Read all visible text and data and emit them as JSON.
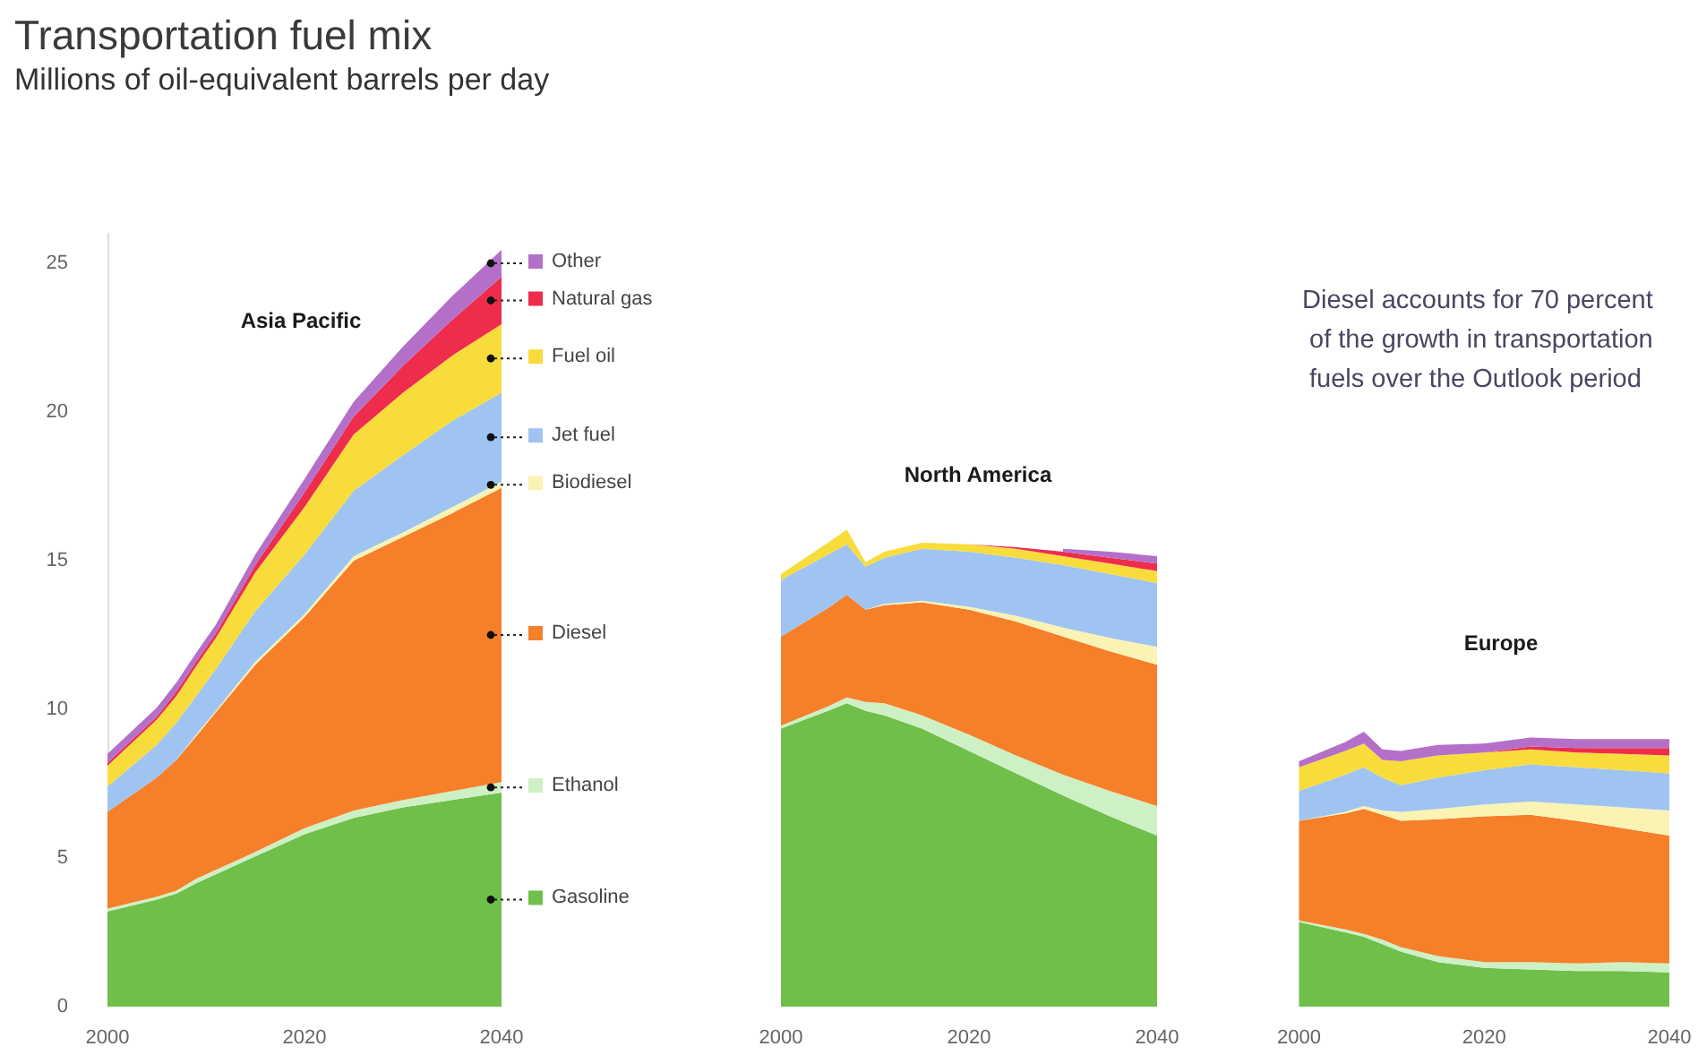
{
  "chart_data": [
    {
      "type": "area",
      "title": "Transportation fuel mix",
      "subtitle": "Millions of oil-equivalent barrels per day",
      "annotations": [
        "Asia Pacific"
      ],
      "stacked": true,
      "legend": "right",
      "x": [
        2000,
        2005,
        2007,
        2009,
        2011,
        2015,
        2020,
        2025,
        2030,
        2035,
        2040
      ],
      "xlim": [
        2000,
        2040
      ],
      "xticks": [
        2000,
        2020,
        2040
      ],
      "ylim": [
        0,
        26
      ],
      "yticks": [
        0,
        5,
        10,
        15,
        20,
        25
      ],
      "series": [
        {
          "name": "Gasoline",
          "color": "#6fbf4a",
          "values": [
            3.2,
            3.6,
            3.8,
            4.15,
            4.45,
            5.05,
            5.8,
            6.35,
            6.7,
            6.95,
            7.2
          ]
        },
        {
          "name": "Ethanol",
          "color": "#cdf0c4",
          "values": [
            0.1,
            0.1,
            0.1,
            0.15,
            0.15,
            0.15,
            0.2,
            0.25,
            0.25,
            0.3,
            0.35
          ]
        },
        {
          "name": "Diesel",
          "color": "#f67f2a",
          "values": [
            3.25,
            4.0,
            4.4,
            4.8,
            5.3,
            6.3,
            7.1,
            8.4,
            8.85,
            9.35,
            9.9
          ]
        },
        {
          "name": "Biodiesel",
          "color": "#fbf3b4",
          "values": [
            0,
            0,
            0,
            0.05,
            0.05,
            0.1,
            0.1,
            0.15,
            0.15,
            0.2,
            0.2
          ]
        },
        {
          "name": "Jet fuel",
          "color": "#9fc4f2",
          "values": [
            0.85,
            1.1,
            1.25,
            1.3,
            1.4,
            1.7,
            2.0,
            2.2,
            2.6,
            2.9,
            3.0
          ]
        },
        {
          "name": "Fuel oil",
          "color": "#f8dc3c",
          "values": [
            0.7,
            0.85,
            0.9,
            1.0,
            1.05,
            1.3,
            1.6,
            1.9,
            2.1,
            2.2,
            2.3
          ]
        },
        {
          "name": "Natural gas",
          "color": "#ee2c4c",
          "values": [
            0.1,
            0.1,
            0.15,
            0.15,
            0.15,
            0.25,
            0.5,
            0.6,
            0.9,
            1.2,
            1.6
          ]
        },
        {
          "name": "Other",
          "color": "#b470c8",
          "values": [
            0.3,
            0.3,
            0.3,
            0.3,
            0.3,
            0.35,
            0.45,
            0.5,
            0.65,
            0.8,
            0.9
          ]
        }
      ]
    },
    {
      "type": "area",
      "annotations": [
        "North America"
      ],
      "stacked": true,
      "tick_labels": "x",
      "x": [
        2000,
        2005,
        2007,
        2009,
        2011,
        2015,
        2020,
        2025,
        2030,
        2035,
        2040
      ],
      "xlim": [
        2000,
        2040
      ],
      "xticks": [
        2000,
        2020,
        2040
      ],
      "ylim": [
        0,
        25
      ],
      "yticks": [
        0,
        5,
        10,
        15,
        20,
        25
      ],
      "series": [
        {
          "color": "#6fbf4a",
          "values": [
            9.35,
            9.95,
            10.2,
            9.95,
            9.8,
            9.35,
            8.6,
            7.85,
            7.1,
            6.4,
            5.75
          ]
        },
        {
          "color": "#cdf0c4",
          "values": [
            0.1,
            0.15,
            0.2,
            0.3,
            0.4,
            0.45,
            0.55,
            0.6,
            0.7,
            0.85,
            1.0
          ]
        },
        {
          "color": "#f67f2a",
          "values": [
            3.0,
            3.3,
            3.45,
            3.1,
            3.3,
            3.8,
            4.2,
            4.5,
            4.65,
            4.7,
            4.75
          ]
        },
        {
          "color": "#fbf3b4",
          "values": [
            0,
            0,
            0,
            0,
            0.05,
            0.05,
            0.1,
            0.2,
            0.3,
            0.45,
            0.6
          ]
        },
        {
          "color": "#9fc4f2",
          "values": [
            1.9,
            1.8,
            1.7,
            1.45,
            1.55,
            1.75,
            1.85,
            1.95,
            2.1,
            2.15,
            2.15
          ]
        },
        {
          "color": "#f8dc3c",
          "values": [
            0.2,
            0.4,
            0.5,
            0.15,
            0.2,
            0.2,
            0.25,
            0.3,
            0.3,
            0.35,
            0.4
          ]
        },
        {
          "color": "#ee2c4c",
          "values": [
            0,
            0,
            0,
            0,
            0,
            0,
            0,
            0.05,
            0.15,
            0.2,
            0.25
          ]
        },
        {
          "color": "#b470c8",
          "values": [
            null,
            null,
            null,
            null,
            null,
            null,
            null,
            null,
            0.1,
            0.2,
            0.25
          ]
        }
      ]
    },
    {
      "type": "area",
      "annotations": [
        "Europe",
        "Diesel accounts for 70 percent of the growth in transportation fuels over the Outlook period"
      ],
      "stacked": true,
      "tick_labels": "x",
      "x": [
        2000,
        2005,
        2007,
        2009,
        2011,
        2015,
        2020,
        2025,
        2030,
        2035,
        2040
      ],
      "xlim": [
        2000,
        2040
      ],
      "xticks": [
        2000,
        2020,
        2040
      ],
      "ylim": [
        0,
        25
      ],
      "yticks": [
        0,
        5,
        10,
        15,
        20,
        25
      ],
      "series": [
        {
          "color": "#6fbf4a",
          "values": [
            2.85,
            2.5,
            2.35,
            2.1,
            1.85,
            1.5,
            1.3,
            1.25,
            1.2,
            1.2,
            1.15
          ]
        },
        {
          "color": "#cdf0c4",
          "values": [
            0.05,
            0.1,
            0.1,
            0.15,
            0.15,
            0.2,
            0.2,
            0.25,
            0.25,
            0.3,
            0.3
          ]
        },
        {
          "color": "#f67f2a",
          "values": [
            3.35,
            3.9,
            4.2,
            4.2,
            4.25,
            4.6,
            4.9,
            4.95,
            4.8,
            4.5,
            4.3
          ]
        },
        {
          "color": "#fbf3b4",
          "values": [
            0,
            0.05,
            0.1,
            0.15,
            0.3,
            0.35,
            0.4,
            0.45,
            0.55,
            0.7,
            0.85
          ]
        },
        {
          "color": "#9fc4f2",
          "values": [
            1.0,
            1.25,
            1.3,
            1.1,
            0.9,
            1.05,
            1.15,
            1.25,
            1.25,
            1.25,
            1.25
          ]
        },
        {
          "color": "#f8dc3c",
          "values": [
            0.8,
            0.8,
            0.8,
            0.6,
            0.8,
            0.75,
            0.6,
            0.5,
            0.5,
            0.55,
            0.6
          ]
        },
        {
          "color": "#ee2c4c",
          "values": [
            0,
            0,
            0,
            0,
            0,
            0,
            0,
            0.1,
            0.15,
            0.2,
            0.25
          ]
        },
        {
          "color": "#b470c8",
          "values": [
            0.2,
            0.3,
            0.4,
            0.35,
            0.35,
            0.35,
            0.3,
            0.3,
            0.3,
            0.3,
            0.3
          ]
        }
      ]
    }
  ]
}
